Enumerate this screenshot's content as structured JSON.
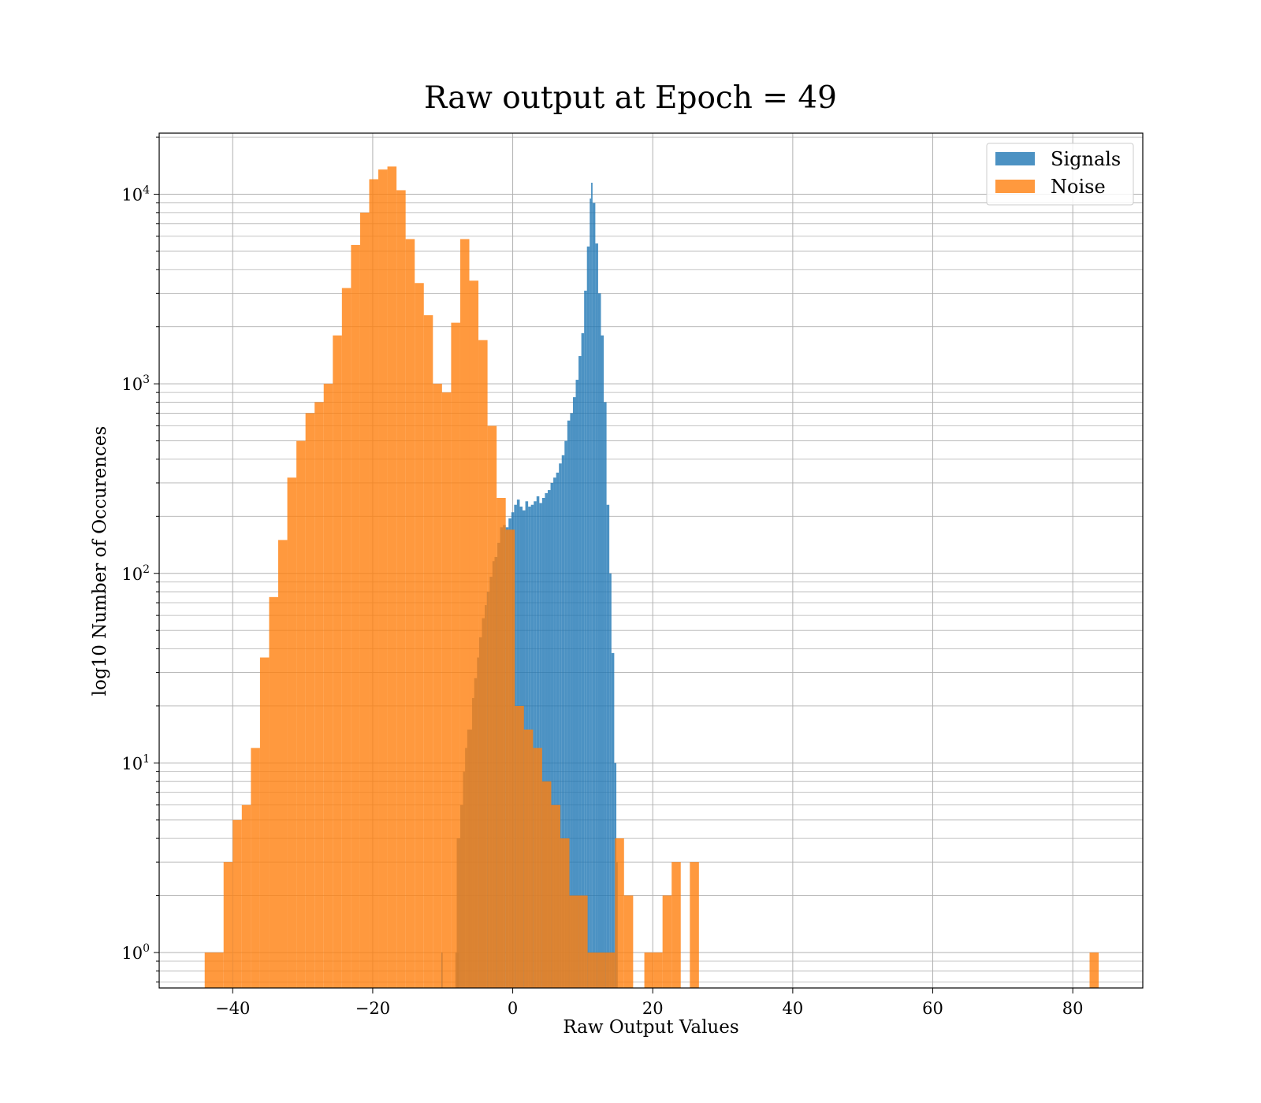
{
  "chart_data": {
    "type": "bar",
    "title": "Raw output at Epoch = 49",
    "xlabel": "Raw Output Values",
    "ylabel": "log10 Number of Occurences",
    "xlim": [
      -50.5,
      90
    ],
    "ylim": [
      0.65,
      21000
    ],
    "y_scale": "log",
    "grid": true,
    "grid_minor_y": true,
    "legend_position": "top-right",
    "x_ticks": [
      -40,
      -20,
      0,
      20,
      40,
      60,
      80
    ],
    "x_tick_labels": [
      "−40",
      "−20",
      "0",
      "20",
      "40",
      "60",
      "80"
    ],
    "y_ticks": [
      1,
      10,
      100,
      1000,
      10000
    ],
    "y_tick_labels": [
      {
        "base": "10",
        "exp": "0"
      },
      {
        "base": "10",
        "exp": "1"
      },
      {
        "base": "10",
        "exp": "2"
      },
      {
        "base": "10",
        "exp": "3"
      },
      {
        "base": "10",
        "exp": "4"
      }
    ],
    "colors": {
      "Signals": "#1f77b4",
      "Noise": "#ff7f0e"
    },
    "series": [
      {
        "name": "Signals",
        "color": "#1f77b4",
        "bins": [
          [
            -10.2,
            -10.0,
            1
          ],
          [
            -8.2,
            -7.7,
            1
          ],
          [
            -8.0,
            -7.5,
            4
          ],
          [
            -7.5,
            -7.1,
            6
          ],
          [
            -7.1,
            -6.8,
            9
          ],
          [
            -6.8,
            -6.5,
            12
          ],
          [
            -6.5,
            -6.2,
            15
          ],
          [
            -6.2,
            -5.8,
            15
          ],
          [
            -5.8,
            -5.5,
            22
          ],
          [
            -5.5,
            -5.1,
            28
          ],
          [
            -5.1,
            -4.8,
            36
          ],
          [
            -4.8,
            -4.4,
            46
          ],
          [
            -4.4,
            -4.0,
            58
          ],
          [
            -4.0,
            -3.7,
            68
          ],
          [
            -3.7,
            -3.3,
            80
          ],
          [
            -3.3,
            -2.9,
            96
          ],
          [
            -2.9,
            -2.6,
            116
          ],
          [
            -2.6,
            -2.2,
            122
          ],
          [
            -2.2,
            -1.8,
            145
          ],
          [
            -1.8,
            -1.4,
            175
          ],
          [
            -1.4,
            -1.0,
            180
          ],
          [
            -1.0,
            -0.6,
            175
          ],
          [
            -0.6,
            -0.2,
            195
          ],
          [
            -0.2,
            0.2,
            210
          ],
          [
            0.2,
            0.6,
            230
          ],
          [
            0.6,
            1.0,
            245
          ],
          [
            1.0,
            1.4,
            225
          ],
          [
            1.4,
            1.8,
            215
          ],
          [
            1.8,
            2.2,
            240
          ],
          [
            2.2,
            2.6,
            225
          ],
          [
            2.6,
            3.0,
            230
          ],
          [
            3.0,
            3.4,
            240
          ],
          [
            3.4,
            3.8,
            255
          ],
          [
            3.8,
            4.2,
            235
          ],
          [
            4.2,
            4.6,
            250
          ],
          [
            4.6,
            5.0,
            265
          ],
          [
            5.0,
            5.4,
            275
          ],
          [
            5.4,
            5.8,
            300
          ],
          [
            5.8,
            6.2,
            320
          ],
          [
            6.2,
            6.6,
            340
          ],
          [
            6.6,
            7.0,
            380
          ],
          [
            7.0,
            7.4,
            420
          ],
          [
            7.4,
            7.8,
            500
          ],
          [
            7.8,
            8.2,
            640
          ],
          [
            8.2,
            8.6,
            700
          ],
          [
            8.6,
            9.0,
            850
          ],
          [
            9.0,
            9.4,
            1050
          ],
          [
            9.4,
            9.8,
            1400
          ],
          [
            9.8,
            10.2,
            1850
          ],
          [
            10.2,
            10.6,
            3100
          ],
          [
            10.6,
            11.0,
            5300
          ],
          [
            11.0,
            11.2,
            9500
          ],
          [
            11.2,
            11.4,
            11500
          ],
          [
            11.4,
            11.8,
            9000
          ],
          [
            11.8,
            12.2,
            5500
          ],
          [
            12.2,
            12.6,
            3000
          ],
          [
            12.6,
            13.0,
            1800
          ],
          [
            13.0,
            13.4,
            800
          ],
          [
            13.4,
            13.8,
            230
          ],
          [
            13.8,
            14.1,
            100
          ],
          [
            14.1,
            14.5,
            38
          ],
          [
            14.5,
            14.8,
            10
          ],
          [
            14.8,
            15.0,
            3
          ]
        ]
      },
      {
        "name": "Noise",
        "color": "#ff7f0e",
        "bins": [
          [
            -44.0,
            -41.3,
            1
          ],
          [
            -41.3,
            -40.0,
            3
          ],
          [
            -40.0,
            -38.7,
            5
          ],
          [
            -38.7,
            -37.4,
            6
          ],
          [
            -37.4,
            -36.1,
            12
          ],
          [
            -36.1,
            -34.8,
            36
          ],
          [
            -34.8,
            -33.5,
            75
          ],
          [
            -33.5,
            -32.2,
            150
          ],
          [
            -32.2,
            -30.9,
            320
          ],
          [
            -30.9,
            -29.6,
            500
          ],
          [
            -29.6,
            -28.3,
            700
          ],
          [
            -28.3,
            -27.0,
            800
          ],
          [
            -27.0,
            -25.7,
            1000
          ],
          [
            -25.7,
            -24.4,
            1800
          ],
          [
            -24.4,
            -23.1,
            3200
          ],
          [
            -23.1,
            -21.8,
            5400
          ],
          [
            -21.8,
            -20.5,
            8000
          ],
          [
            -20.5,
            -19.2,
            12000
          ],
          [
            -19.2,
            -17.9,
            13500
          ],
          [
            -17.9,
            -16.6,
            14000
          ],
          [
            -16.6,
            -15.3,
            10500
          ],
          [
            -15.3,
            -14.0,
            5800
          ],
          [
            -14.0,
            -12.7,
            3400
          ],
          [
            -12.7,
            -11.4,
            2300
          ],
          [
            -11.4,
            -10.1,
            1000
          ],
          [
            -10.1,
            -8.8,
            900
          ],
          [
            -8.8,
            -7.5,
            2100
          ],
          [
            -7.5,
            -6.2,
            5800
          ],
          [
            -6.2,
            -4.9,
            3500
          ],
          [
            -4.9,
            -3.6,
            1700
          ],
          [
            -3.6,
            -2.3,
            600
          ],
          [
            -2.3,
            -1.0,
            250
          ],
          [
            -1.0,
            0.3,
            170
          ],
          [
            0.3,
            1.6,
            20
          ],
          [
            1.6,
            2.9,
            15
          ],
          [
            2.9,
            4.2,
            12
          ],
          [
            4.2,
            5.5,
            8
          ],
          [
            5.5,
            6.8,
            6
          ],
          [
            6.8,
            8.1,
            4
          ],
          [
            8.1,
            9.4,
            2
          ],
          [
            9.4,
            10.7,
            2
          ],
          [
            10.7,
            12.0,
            1
          ],
          [
            12.0,
            13.3,
            1
          ],
          [
            13.3,
            14.6,
            1
          ],
          [
            14.6,
            15.9,
            4
          ],
          [
            15.9,
            17.2,
            2
          ],
          [
            18.8,
            20.1,
            1
          ],
          [
            20.1,
            21.4,
            1
          ],
          [
            21.4,
            22.7,
            2
          ],
          [
            22.7,
            24.0,
            3
          ],
          [
            25.3,
            26.6,
            3
          ],
          [
            82.4,
            83.7,
            1
          ]
        ]
      }
    ]
  }
}
